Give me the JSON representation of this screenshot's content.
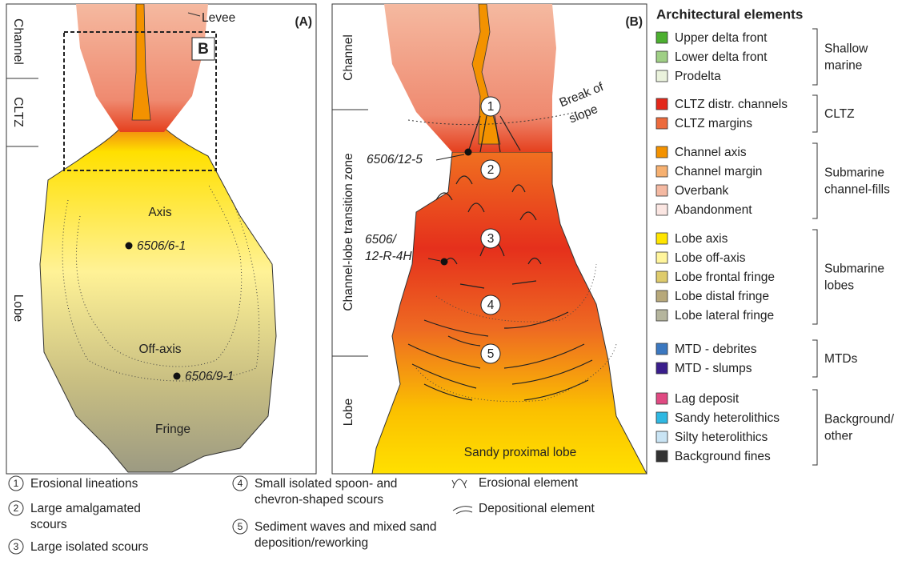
{
  "panel_a": {
    "label": "(A)",
    "inset_label": "B",
    "levee": "Levee",
    "zones": [
      "Channel",
      "CLTZ",
      "Lobe"
    ],
    "facies": [
      "Axis",
      "Off-axis",
      "Fringe"
    ],
    "wells": [
      "6506/6-1",
      "6506/9-1"
    ]
  },
  "panel_b": {
    "label": "(B)",
    "zones": [
      "Channel",
      "Channel-lobe transition zone",
      "Lobe"
    ],
    "break_of_slope": [
      "Break of",
      "slope"
    ],
    "wells": [
      [
        "6506/12-5"
      ],
      [
        "6506/",
        "12-R-4H"
      ]
    ],
    "markers": [
      "1",
      "2",
      "3",
      "4",
      "5"
    ],
    "facies": "Sandy proximal lobe"
  },
  "legend": {
    "title": "Architectural elements",
    "groups": [
      {
        "label": [
          "Shallow",
          "marine"
        ],
        "items": [
          {
            "name": "Upper delta front",
            "color": "#4caf30"
          },
          {
            "name": "Lower delta front",
            "color": "#9fcf85"
          },
          {
            "name": "Prodelta",
            "color": "#eaf2dc"
          }
        ]
      },
      {
        "label": [
          "CLTZ"
        ],
        "items": [
          {
            "name": "CLTZ distr. channels",
            "color": "#e3281a"
          },
          {
            "name": "CLTZ margins",
            "color": "#ec6a3c"
          }
        ]
      },
      {
        "label": [
          "Submarine",
          "channel-fills"
        ],
        "items": [
          {
            "name": "Channel axis",
            "color": "#f39200"
          },
          {
            "name": "Channel margin",
            "color": "#f6b070"
          },
          {
            "name": "Overbank",
            "color": "#f4b9a2"
          },
          {
            "name": "Abandonment",
            "color": "#fbe6e2"
          }
        ]
      },
      {
        "label": [
          "Submarine",
          "lobes"
        ],
        "items": [
          {
            "name": "Lobe axis",
            "color": "#ffe500"
          },
          {
            "name": "Lobe off-axis",
            "color": "#fff59c"
          },
          {
            "name": "Lobe frontal fringe",
            "color": "#decb6c"
          },
          {
            "name": "Lobe distal fringe",
            "color": "#b7a87a"
          },
          {
            "name": "Lobe lateral fringe",
            "color": "#b5b59d"
          }
        ]
      },
      {
        "label": [
          "MTDs"
        ],
        "items": [
          {
            "name": "MTD - debrites",
            "color": "#3b78c0"
          },
          {
            "name": "MTD - slumps",
            "color": "#3a1e8c"
          }
        ]
      },
      {
        "label": [
          "Background/",
          "other"
        ],
        "items": [
          {
            "name": "Lag deposit",
            "color": "#e04a82"
          },
          {
            "name": "Sandy heterolithics",
            "color": "#2fb8e2"
          },
          {
            "name": "Silty heterolithics",
            "color": "#c9e4f4"
          },
          {
            "name": "Background fines",
            "color": "#333333"
          }
        ]
      }
    ]
  },
  "notes": {
    "items": [
      {
        "number": "1",
        "lines": [
          "Erosional lineations"
        ]
      },
      {
        "number": "2",
        "lines": [
          "Large amalgamated",
          "scours"
        ]
      },
      {
        "number": "3",
        "lines": [
          "Large isolated scours"
        ]
      },
      {
        "number": "4",
        "lines": [
          "Small isolated spoon- and",
          "chevron-shaped scours"
        ]
      },
      {
        "number": "5",
        "lines": [
          "Sediment waves and mixed sand",
          "deposition/reworking"
        ]
      }
    ],
    "symbols": [
      "Erosional element",
      "Depositional element"
    ]
  }
}
